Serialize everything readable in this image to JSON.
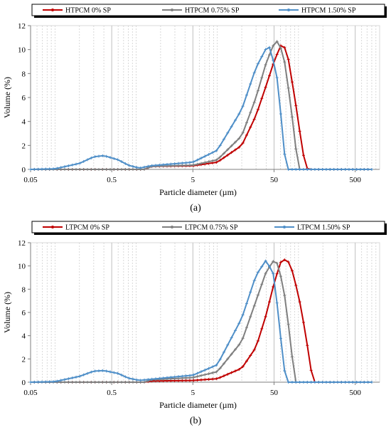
{
  "chart_data": [
    {
      "type": "line",
      "caption": "(a)",
      "xlabel": "Particle diameter (µm)",
      "ylabel": "Volume (%)",
      "xscale": "log",
      "xlim": [
        0.05,
        1000
      ],
      "ylim": [
        0,
        12
      ],
      "xticks": [
        "0.05",
        "0.5",
        "5",
        "50",
        "500"
      ],
      "xtick_values": [
        0.05,
        0.5,
        5,
        50,
        500
      ],
      "yticks": [
        "0",
        "2",
        "4",
        "6",
        "8",
        "10",
        "12"
      ],
      "ytick_values": [
        0,
        2,
        4,
        6,
        8,
        10,
        12
      ],
      "grid": true,
      "legend_position": "top",
      "series": [
        {
          "name": "HTPCM 0% SP",
          "color": "#c00000",
          "x": [
            0.05,
            0.5,
            1.3,
            1.5,
            5,
            10,
            20,
            30,
            40,
            50,
            60,
            65,
            75,
            90,
            110,
            120,
            130,
            800
          ],
          "y": [
            0,
            0,
            0,
            0.25,
            0.3,
            0.6,
            2.0,
            4.5,
            7.0,
            9.0,
            10.3,
            10.5,
            9.2,
            6.0,
            2.0,
            0.5,
            0,
            0
          ]
        },
        {
          "name": "HTPCM  0.75% SP",
          "color": "#7f7f7f",
          "x": [
            0.05,
            0.5,
            1.3,
            1.5,
            5,
            10,
            20,
            30,
            40,
            50,
            55,
            65,
            80,
            90,
            100,
            800
          ],
          "y": [
            0,
            0,
            0,
            0.25,
            0.35,
            0.8,
            2.8,
            6.0,
            8.9,
            10.5,
            10.7,
            9.7,
            5.5,
            2.5,
            0,
            0
          ]
        },
        {
          "name": "HTPCM  1.50% SP",
          "color": "#4f8fc8",
          "x": [
            0.05,
            0.1,
            0.2,
            0.3,
            0.4,
            0.6,
            0.8,
            1.1,
            1.5,
            5,
            10,
            20,
            30,
            40,
            45,
            55,
            65,
            70,
            800
          ],
          "y": [
            0,
            0.05,
            0.5,
            1.05,
            1.15,
            0.8,
            0.35,
            0.1,
            0.3,
            0.6,
            1.6,
            5.0,
            8.5,
            10.1,
            10.2,
            7.5,
            2.5,
            0,
            0
          ]
        }
      ]
    },
    {
      "type": "line",
      "caption": "(b)",
      "xlabel": "Particle diameter (µm)",
      "ylabel": "Volume (%)",
      "xscale": "log",
      "xlim": [
        0.05,
        1000
      ],
      "ylim": [
        0,
        12
      ],
      "xticks": [
        "0.05",
        "0.5",
        "5",
        "50",
        "500"
      ],
      "xtick_values": [
        0.05,
        0.5,
        5,
        50,
        500
      ],
      "yticks": [
        "0",
        "2",
        "4",
        "6",
        "8",
        "10",
        "12"
      ],
      "ytick_values": [
        0,
        2,
        4,
        6,
        8,
        10,
        12
      ],
      "grid": true,
      "legend_position": "top",
      "series": [
        {
          "name": "LTPCM 0% SP",
          "color": "#c00000",
          "x": [
            0.05,
            0.5,
            1.3,
            1.5,
            5,
            10,
            20,
            30,
            40,
            50,
            60,
            70,
            80,
            100,
            120,
            140,
            150,
            800
          ],
          "y": [
            0,
            0,
            0,
            0.1,
            0.15,
            0.3,
            1.2,
            3.0,
            5.8,
            8.5,
            10.3,
            10.6,
            10.1,
            7.5,
            4.5,
            1.5,
            0,
            0
          ]
        },
        {
          "name": "LTPCM  0.75% SP",
          "color": "#7f7f7f",
          "x": [
            0.05,
            0.5,
            1.3,
            1.5,
            5,
            10,
            20,
            30,
            40,
            50,
            55,
            65,
            80,
            90,
            800
          ],
          "y": [
            0,
            0,
            0,
            0.2,
            0.4,
            0.9,
            3.5,
            7.0,
            9.5,
            10.5,
            10.2,
            8.3,
            3.5,
            0,
            0
          ]
        },
        {
          "name": "LTPCM  1.50% SP",
          "color": "#4f8fc8",
          "x": [
            0.05,
            0.1,
            0.2,
            0.3,
            0.4,
            0.6,
            0.8,
            1.1,
            1.5,
            5,
            10,
            20,
            30,
            40,
            50,
            60,
            70,
            800
          ],
          "y": [
            0,
            0.05,
            0.5,
            0.95,
            1.0,
            0.75,
            0.35,
            0.15,
            0.25,
            0.6,
            1.5,
            5.5,
            9.2,
            10.5,
            9.2,
            4.0,
            0,
            0
          ]
        }
      ]
    }
  ]
}
